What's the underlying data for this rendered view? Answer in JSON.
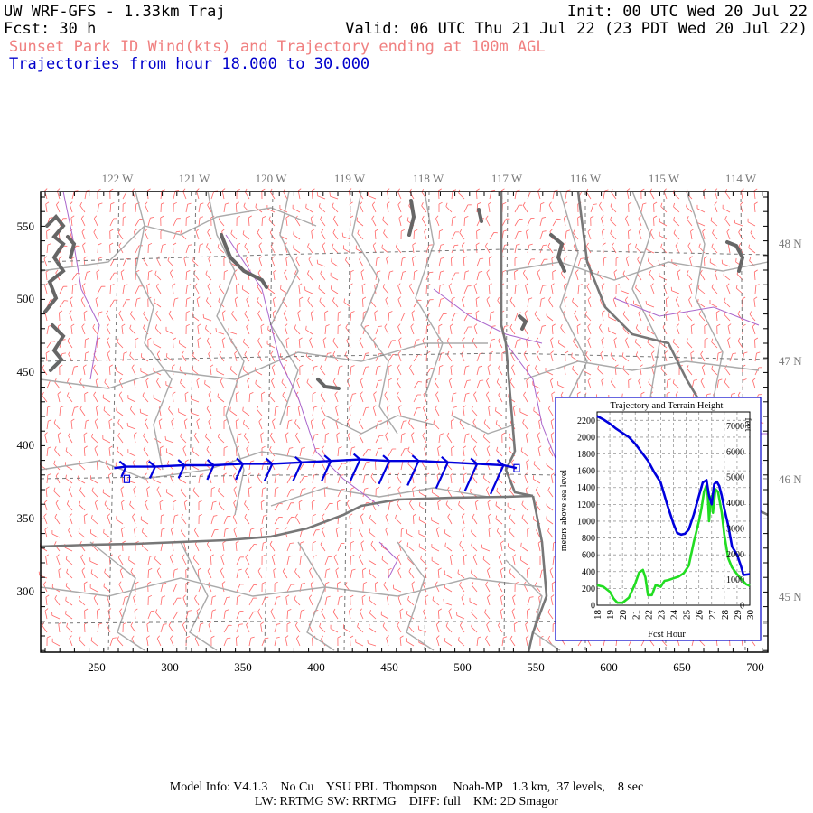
{
  "header": {
    "model": "UW WRF-GFS - 1.33km Traj",
    "init": "Init: 00 UTC Wed 20 Jul 22",
    "fcst": "Fcst:   30 h",
    "valid": "Valid: 06 UTC Thu 21 Jul 22 (23 PDT Wed 20 Jul 22)",
    "subtitle": "Sunset Park ID Wind(kts) and Trajectory ending at 100m AGL",
    "traj_range": "Trajectories from hour  18.000 to  30.000"
  },
  "colors": {
    "subtitle": "#f08080",
    "traj_range": "#0000cc",
    "trajectory": "#0000dd",
    "terrain": "#22dd22",
    "wind_barbs": "#ff6666",
    "coast": "#666666",
    "state_border": "#777777",
    "county": "#aaaaaa",
    "river": "#aa66cc",
    "graticule": "#777777"
  },
  "map": {
    "lon_labels": [
      "122 W",
      "121 W",
      "120 W",
      "119 W",
      "118 W",
      "117 W",
      "116 W",
      "115 W",
      "114 W"
    ],
    "lat_labels": [
      "48 N",
      "47 N",
      "46 N",
      "45 N"
    ],
    "x_ticks": [
      "250",
      "300",
      "350",
      "400",
      "450",
      "500",
      "550",
      "600",
      "650",
      "700"
    ],
    "y_ticks": [
      "550",
      "500",
      "450",
      "400",
      "350",
      "300"
    ]
  },
  "inset": {
    "title": "Trajectory and Terrain Height",
    "xlabel": "Fcst Hour",
    "ylabel_left": "meters above sea level",
    "ylabel_right": "feet",
    "x_ticks": [
      "18",
      "19",
      "20",
      "21",
      "22",
      "23",
      "24",
      "25",
      "26",
      "27",
      "28",
      "29",
      "30"
    ],
    "y_ticks_m": [
      "0",
      "200",
      "400",
      "600",
      "800",
      "1000",
      "1200",
      "1400",
      "1600",
      "1800",
      "2000",
      "2200"
    ],
    "y_ticks_ft": [
      "0",
      "1000",
      "2000",
      "3000",
      "4000",
      "5000",
      "6000",
      "7000"
    ]
  },
  "chart_data": {
    "type": "line",
    "title": "Trajectory and Terrain Height",
    "xlabel": "Fcst Hour",
    "ylabel": "meters above sea level",
    "xlim": [
      18,
      30
    ],
    "ylim": [
      0,
      2300
    ],
    "series": [
      {
        "name": "trajectory",
        "x": [
          18,
          18.5,
          19,
          19.5,
          20,
          20.5,
          21,
          21.5,
          22,
          22.5,
          23,
          23.5,
          24,
          24.3,
          24.6,
          24.9,
          25.2,
          25.6,
          26,
          26.3,
          26.6,
          26.8,
          27,
          27.2,
          27.4,
          27.6,
          27.8,
          28,
          28.3,
          28.6,
          29,
          29.3,
          29.5,
          30
        ],
        "y": [
          2250,
          2210,
          2160,
          2100,
          2050,
          2000,
          1920,
          1820,
          1720,
          1580,
          1460,
          1200,
          970,
          860,
          840,
          850,
          900,
          1080,
          1300,
          1460,
          1490,
          1300,
          1200,
          1440,
          1470,
          1420,
          1300,
          1150,
          950,
          700,
          600,
          470,
          360,
          370
        ]
      },
      {
        "name": "terrain",
        "x": [
          18,
          18.5,
          19,
          19.3,
          19.6,
          20,
          20.5,
          21,
          21.3,
          21.6,
          21.8,
          22,
          22.3,
          22.6,
          23,
          23.3,
          23.6,
          24,
          24.4,
          24.8,
          25.2,
          25.6,
          26,
          26.2,
          26.4,
          26.6,
          26.7,
          26.8,
          26.9,
          27,
          27.1,
          27.3,
          27.5,
          27.8,
          28,
          28.3,
          28.6,
          29,
          29.4,
          29.7,
          30
        ],
        "y": [
          240,
          220,
          160,
          80,
          30,
          30,
          90,
          260,
          390,
          420,
          330,
          120,
          120,
          240,
          220,
          290,
          300,
          320,
          340,
          380,
          470,
          750,
          1000,
          1150,
          1350,
          1430,
          1300,
          1000,
          1200,
          1300,
          1100,
          1380,
          1350,
          1100,
          840,
          560,
          450,
          370,
          300,
          250,
          230
        ]
      }
    ]
  },
  "trajectory_map": {
    "x": [
      537,
      528,
      510,
      490,
      470,
      450,
      430,
      410,
      390,
      370,
      350,
      330,
      310,
      290,
      270,
      262
    ],
    "y": [
      387,
      389,
      390,
      391,
      392,
      392,
      393,
      392,
      391,
      390,
      390,
      389,
      389,
      388,
      388,
      387
    ]
  },
  "footer": {
    "line1": "Model Info: V4.1.3    No Cu    YSU PBL  Thompson     Noah-MP   1.3 km,  37 levels,    8 sec",
    "line2": "LW: RRTMG SW: RRTMG    DIFF: full    KM: 2D Smagor"
  }
}
